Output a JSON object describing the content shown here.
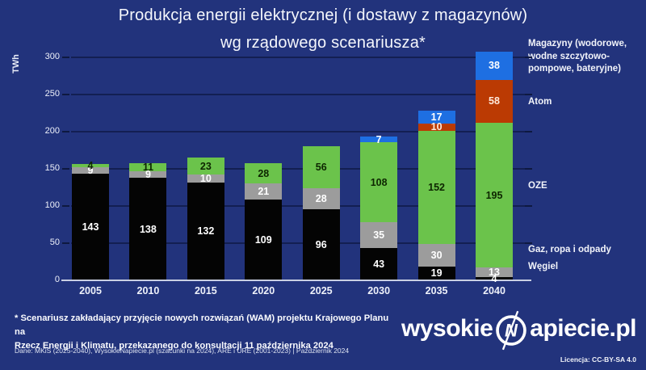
{
  "title": {
    "line1": "Produkcja energii elektrycznej (i dostawy z magazynów)",
    "line2": "wg rządowego scenariusza*"
  },
  "y_axis": {
    "label": "TWh",
    "ticks": [
      0,
      50,
      100,
      150,
      200,
      250,
      300
    ]
  },
  "chart_data": {
    "type": "bar",
    "stacked": true,
    "title": "Produkcja energii elektrycznej (i dostawy z magazynów) wg rządowego scenariusza*",
    "xlabel": "",
    "ylabel": "TWh",
    "ylim": [
      0,
      300
    ],
    "grid": true,
    "legend_position": "right",
    "categories": [
      "2005",
      "2010",
      "2015",
      "2020",
      "2025",
      "2030",
      "2035",
      "2040"
    ],
    "series": [
      {
        "name": "Węgiel",
        "color": "#040404",
        "label_color": "#ffffff",
        "values": [
          143,
          138,
          132,
          109,
          96,
          43,
          19,
          4
        ]
      },
      {
        "name": "Gaz, ropa i odpady",
        "color": "#9c9c9c",
        "label_color": "#ffffff",
        "values": [
          9,
          9,
          10,
          21,
          28,
          35,
          30,
          13
        ]
      },
      {
        "name": "OZE",
        "color": "#6bc34b",
        "label_color": "#0d2600",
        "values": [
          4,
          11,
          23,
          28,
          56,
          108,
          152,
          195
        ]
      },
      {
        "name": "Atom",
        "color": "#bb3a03",
        "label_color": "#ffe9dc",
        "values": [
          0,
          0,
          0,
          0,
          0,
          0,
          10,
          58
        ]
      },
      {
        "name": "Magazyny (wodorowe, wodne szczytowo-pompowe, bateryjne)",
        "color": "#1e6fe2",
        "label_color": "#ffffff",
        "values": [
          0,
          0,
          0,
          0,
          0,
          7,
          17,
          38
        ]
      }
    ]
  },
  "legend": {
    "items": [
      {
        "id": "magazyny",
        "label": "Magazyny (wodorowe,\nwodne szczytowo-\npompowe, bateryjne)"
      },
      {
        "id": "atom",
        "label": "Atom"
      },
      {
        "id": "oze",
        "label": "OZE"
      },
      {
        "id": "gaz",
        "label": "Gaz, ropa i odpady"
      },
      {
        "id": "wegiel",
        "label": "Węgiel"
      }
    ]
  },
  "footnote": {
    "text": "* Scenariusz zakładający przyjęcie nowych rozwiązań (WAM) projektu Krajowego Planu na\nRzecz Energii i Klimatu, przekazanego do konsultacji 11 października 2024"
  },
  "source": {
    "text": "Dane: MKiŚ (2025-2040), WysokieNapiecie.pl (szacunki na 2024), ARE i URE (2001-2023)  |  Październik 2024"
  },
  "branding": {
    "logo_prefix": "wysokie",
    "logo_letter": "N",
    "logo_suffix": "apiecie.pl",
    "license": "Licencja: CC-BY-SA 4.0"
  },
  "colors": {
    "background": "#22337c",
    "gridline": "#131f52",
    "baseline": "#c9cfe3",
    "text": "#f5f7fc"
  }
}
